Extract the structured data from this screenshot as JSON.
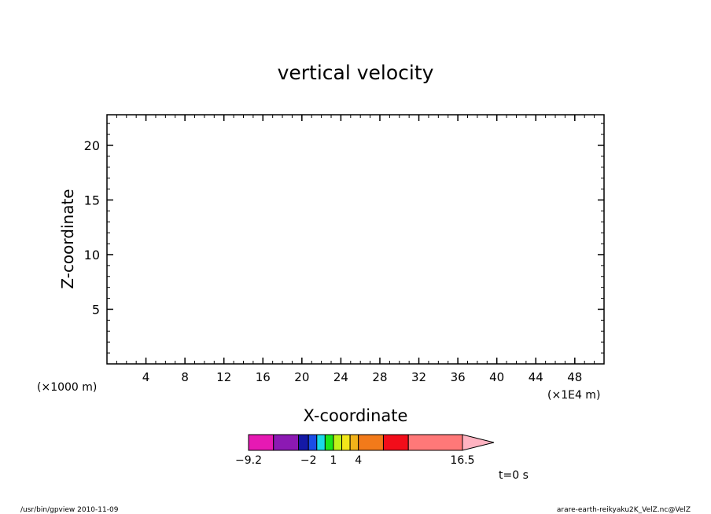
{
  "chart_data": {
    "type": "heatmap",
    "title": "vertical velocity",
    "xlabel": "X-coordinate",
    "ylabel": "Z-coordinate",
    "x_unit_left": "(×1000 m)",
    "x_unit_right": "(×1E4 m)",
    "xlim": [
      0,
      51
    ],
    "ylim": [
      0,
      22.8
    ],
    "xticks": [
      4,
      8,
      12,
      16,
      20,
      24,
      28,
      32,
      36,
      40,
      44,
      48
    ],
    "yticks": [
      5,
      10,
      15,
      20
    ],
    "x_minor_step": 1,
    "y_minor_step": 1,
    "series": [],
    "colorbar": {
      "colors": [
        "#e619b3",
        "#8c19b3",
        "#1419a6",
        "#1a4de6",
        "#1ad9e6",
        "#1ae61a",
        "#bff21a",
        "#f2e61a",
        "#f2b31a",
        "#f27a1a",
        "#f20d1a",
        "#ff7878"
      ],
      "boundaries": [
        -9.2,
        -6.2,
        -3.2,
        -2,
        -1,
        0,
        1,
        2,
        3,
        4,
        7,
        10,
        16.5
      ],
      "extend_color": "#ffb3c1",
      "labels": [
        "−9.2",
        "−2",
        "1",
        "4",
        "16.5"
      ]
    },
    "time_label": "t=0 s"
  },
  "footer": {
    "left": "/usr/bin/gpview   2010-11-09",
    "right": "arare-earth-reikyaku2K_VelZ.nc@VelZ"
  }
}
